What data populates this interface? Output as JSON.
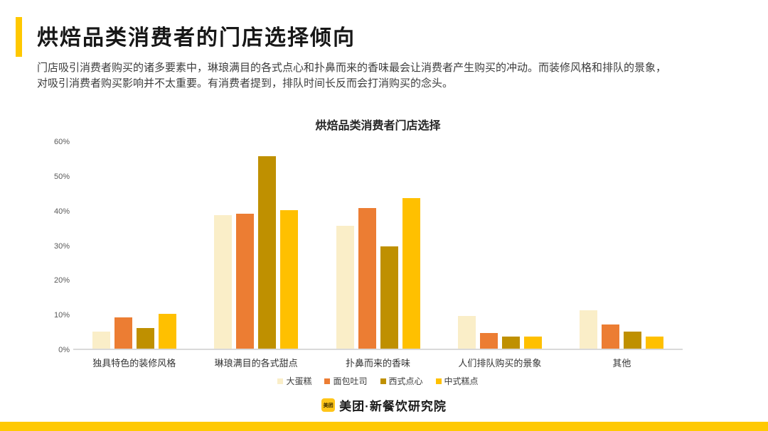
{
  "page": {
    "title": "烘焙品类消费者的门店选择倾向",
    "description_lines": [
      "门店吸引消费者购买的诸多要素中，琳琅满目的各式点心和扑鼻而来的香味最会让消费者产生购买的冲动。而装修风格和排队的景象，",
      "对吸引消费者购买影响并不太重要。有消费者提到，排队时间长反而会打消购买的念头。"
    ],
    "accent_color": "#FFC800"
  },
  "chart_data": {
    "type": "bar",
    "title": "烘焙品类消费者门店选择",
    "categories": [
      "独具特色的装修风格",
      "琳琅满目的各式甜点",
      "扑鼻而来的香味",
      "人们排队购买的景象",
      "其他"
    ],
    "series": [
      {
        "name": "大蛋糕",
        "color": "#FAEEC8",
        "values": [
          5,
          38.5,
          35.5,
          9.5,
          11
        ]
      },
      {
        "name": "面包吐司",
        "color": "#EC7D33",
        "values": [
          9,
          39,
          40.5,
          4.5,
          7
        ]
      },
      {
        "name": "西式点心",
        "color": "#BF9000",
        "values": [
          6,
          55.5,
          29.5,
          3.5,
          5
        ]
      },
      {
        "name": "中式糕点",
        "color": "#FFC000",
        "values": [
          10,
          40,
          43.5,
          3.5,
          3.5
        ]
      }
    ],
    "xlabel": "",
    "ylabel": "",
    "ylim": [
      0,
      60
    ],
    "y_ticks": [
      "0%",
      "10%",
      "20%",
      "30%",
      "40%",
      "50%",
      "60%"
    ],
    "grid": false,
    "legend_position": "bottom"
  },
  "footer": {
    "logo_text": "美团",
    "brand_text": "美团·新餐饮研究院",
    "logo_color": "#FFC519"
  }
}
